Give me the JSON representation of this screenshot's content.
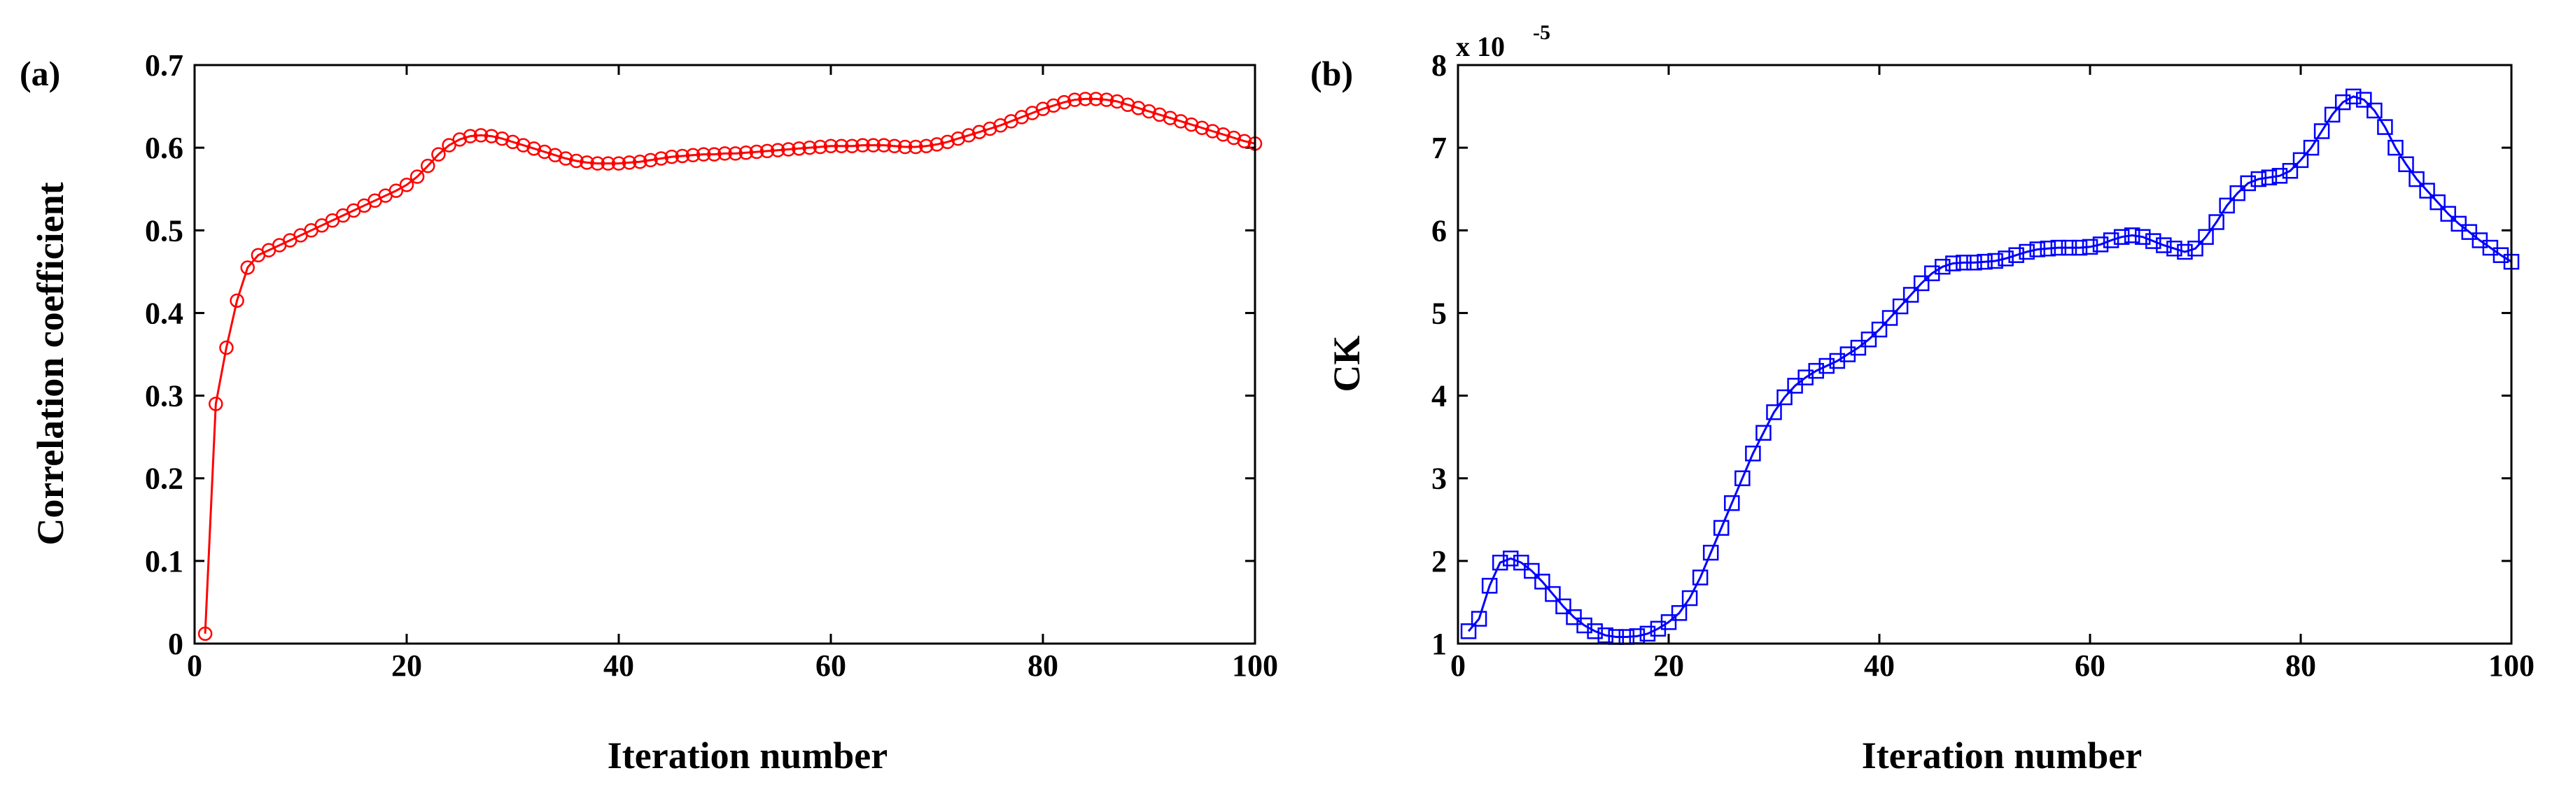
{
  "chart_data": [
    {
      "type": "line",
      "panel_label": "(a)",
      "title": "",
      "xlabel": "Iteration number",
      "ylabel": "Correlation coefficient",
      "xlim": [
        0,
        100
      ],
      "ylim": [
        0,
        0.7
      ],
      "xticks": [
        0,
        20,
        40,
        60,
        80,
        100
      ],
      "xtick_labels": [
        "0",
        "20",
        "40",
        "60",
        "80",
        "100"
      ],
      "yticks": [
        0,
        0.1,
        0.2,
        0.3,
        0.4,
        0.5,
        0.6,
        0.7
      ],
      "ytick_labels": [
        "0",
        "0.1",
        "0.2",
        "0.3",
        "0.4",
        "0.5",
        "0.6",
        "0.7"
      ],
      "series": [
        {
          "name": "Correlation coefficient",
          "color": "#ff0000",
          "marker": "circle",
          "x": [
            1,
            2,
            3,
            4,
            5,
            6,
            7,
            8,
            9,
            10,
            11,
            12,
            13,
            14,
            15,
            16,
            17,
            18,
            19,
            20,
            21,
            22,
            23,
            24,
            25,
            26,
            27,
            28,
            29,
            30,
            31,
            32,
            33,
            34,
            35,
            36,
            37,
            38,
            39,
            40,
            41,
            42,
            43,
            44,
            45,
            46,
            47,
            48,
            49,
            50,
            51,
            52,
            53,
            54,
            55,
            56,
            57,
            58,
            59,
            60,
            61,
            62,
            63,
            64,
            65,
            66,
            67,
            68,
            69,
            70,
            71,
            72,
            73,
            74,
            75,
            76,
            77,
            78,
            79,
            80,
            81,
            82,
            83,
            84,
            85,
            86,
            87,
            88,
            89,
            90,
            91,
            92,
            93,
            94,
            95,
            96,
            97,
            98,
            99,
            100
          ],
          "values": [
            0.012,
            0.29,
            0.358,
            0.415,
            0.455,
            0.47,
            0.476,
            0.482,
            0.488,
            0.494,
            0.5,
            0.506,
            0.512,
            0.518,
            0.524,
            0.53,
            0.536,
            0.542,
            0.548,
            0.555,
            0.565,
            0.578,
            0.592,
            0.603,
            0.61,
            0.614,
            0.615,
            0.614,
            0.611,
            0.607,
            0.603,
            0.599,
            0.595,
            0.591,
            0.587,
            0.584,
            0.582,
            0.581,
            0.581,
            0.581,
            0.582,
            0.583,
            0.585,
            0.587,
            0.589,
            0.59,
            0.591,
            0.592,
            0.592,
            0.593,
            0.593,
            0.594,
            0.595,
            0.596,
            0.597,
            0.598,
            0.599,
            0.6,
            0.601,
            0.602,
            0.602,
            0.602,
            0.603,
            0.603,
            0.603,
            0.602,
            0.601,
            0.601,
            0.602,
            0.604,
            0.607,
            0.611,
            0.615,
            0.619,
            0.623,
            0.627,
            0.632,
            0.637,
            0.642,
            0.647,
            0.651,
            0.655,
            0.658,
            0.659,
            0.659,
            0.658,
            0.656,
            0.652,
            0.648,
            0.644,
            0.64,
            0.636,
            0.632,
            0.628,
            0.624,
            0.62,
            0.616,
            0.612,
            0.608,
            0.605
          ]
        }
      ]
    },
    {
      "type": "line",
      "panel_label": "(b)",
      "title": "",
      "xlabel": "Iteration number",
      "ylabel": "CK",
      "scale_label": "x 10",
      "scale_exponent": "-5",
      "xlim": [
        0,
        100
      ],
      "ylim": [
        1,
        8
      ],
      "xticks": [
        0,
        20,
        40,
        60,
        80,
        100
      ],
      "xtick_labels": [
        "0",
        "20",
        "40",
        "60",
        "80",
        "100"
      ],
      "yticks": [
        1,
        2,
        3,
        4,
        5,
        6,
        7,
        8
      ],
      "ytick_labels": [
        "1",
        "2",
        "3",
        "4",
        "5",
        "6",
        "7",
        "8"
      ],
      "series": [
        {
          "name": "CK",
          "color": "#0000ff",
          "marker": "square",
          "x": [
            1,
            2,
            3,
            4,
            5,
            6,
            7,
            8,
            9,
            10,
            11,
            12,
            13,
            14,
            15,
            16,
            17,
            18,
            19,
            20,
            21,
            22,
            23,
            24,
            25,
            26,
            27,
            28,
            29,
            30,
            31,
            32,
            33,
            34,
            35,
            36,
            37,
            38,
            39,
            40,
            41,
            42,
            43,
            44,
            45,
            46,
            47,
            48,
            49,
            50,
            51,
            52,
            53,
            54,
            55,
            56,
            57,
            58,
            59,
            60,
            61,
            62,
            63,
            64,
            65,
            66,
            67,
            68,
            69,
            70,
            71,
            72,
            73,
            74,
            75,
            76,
            77,
            78,
            79,
            80,
            81,
            82,
            83,
            84,
            85,
            86,
            87,
            88,
            89,
            90,
            91,
            92,
            93,
            94,
            95,
            96,
            97,
            98,
            99,
            100
          ],
          "values": [
            1.15,
            1.3,
            1.7,
            1.98,
            2.03,
            1.98,
            1.88,
            1.75,
            1.6,
            1.45,
            1.32,
            1.22,
            1.15,
            1.1,
            1.08,
            1.08,
            1.09,
            1.12,
            1.18,
            1.26,
            1.37,
            1.55,
            1.8,
            2.1,
            2.4,
            2.7,
            3.0,
            3.3,
            3.55,
            3.8,
            3.98,
            4.12,
            4.22,
            4.3,
            4.36,
            4.42,
            4.5,
            4.58,
            4.68,
            4.8,
            4.94,
            5.08,
            5.22,
            5.36,
            5.48,
            5.56,
            5.6,
            5.61,
            5.61,
            5.62,
            5.63,
            5.66,
            5.7,
            5.74,
            5.77,
            5.78,
            5.79,
            5.79,
            5.79,
            5.8,
            5.83,
            5.88,
            5.92,
            5.94,
            5.92,
            5.87,
            5.82,
            5.78,
            5.74,
            5.78,
            5.92,
            6.1,
            6.3,
            6.45,
            6.57,
            6.62,
            6.64,
            6.66,
            6.72,
            6.85,
            7.0,
            7.2,
            7.4,
            7.55,
            7.62,
            7.58,
            7.45,
            7.25,
            7.0,
            6.8,
            6.62,
            6.48,
            6.34,
            6.2,
            6.08,
            5.98,
            5.88,
            5.79,
            5.7,
            5.62
          ]
        }
      ]
    }
  ]
}
